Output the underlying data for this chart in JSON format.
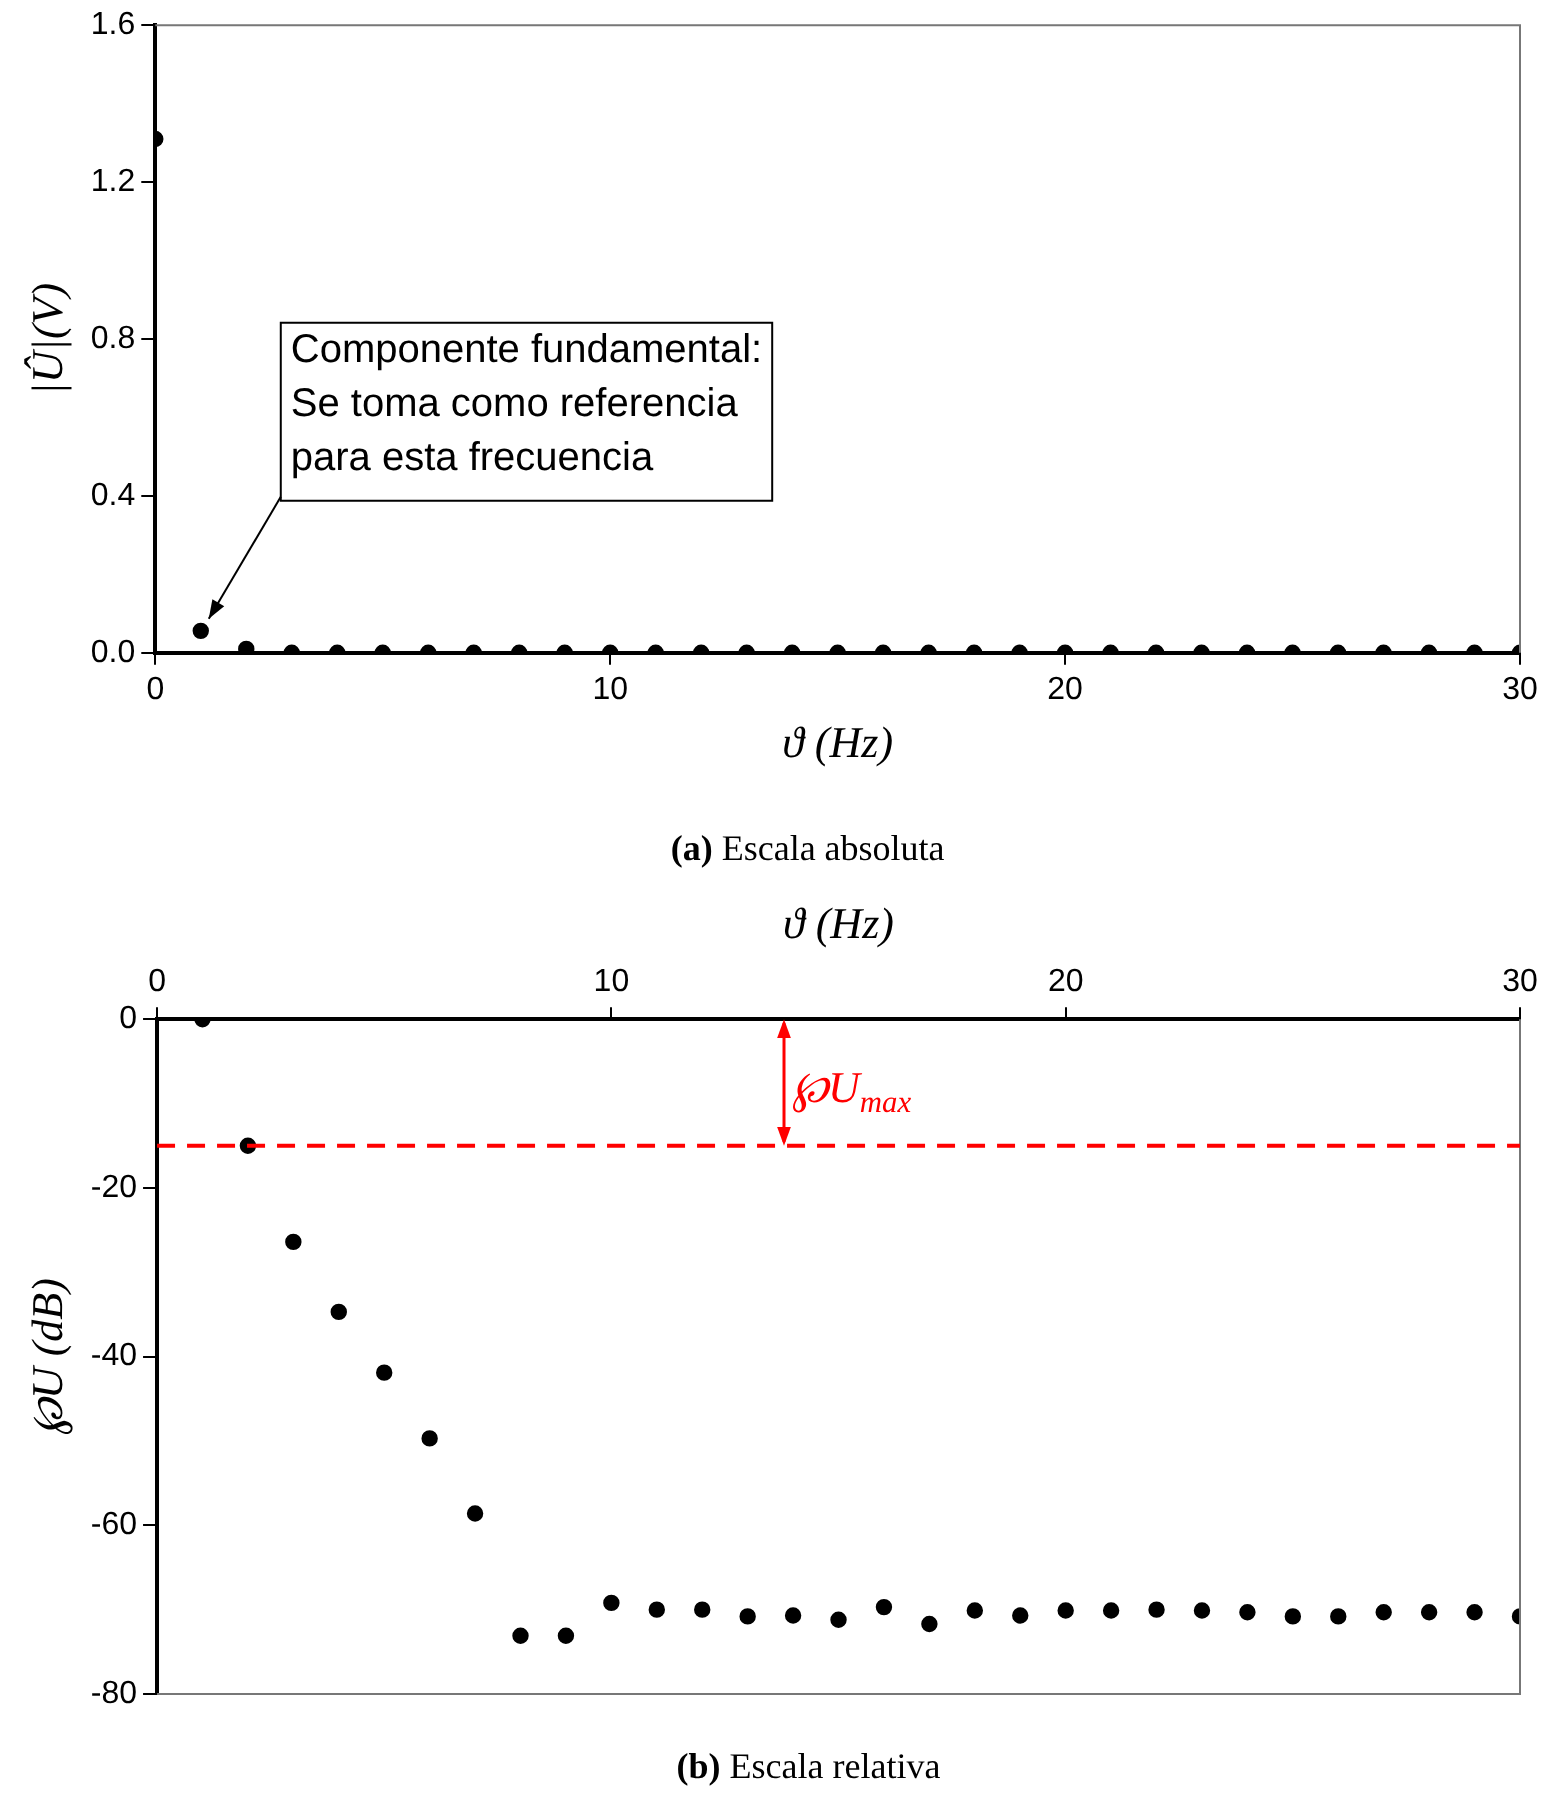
{
  "chart_data": [
    {
      "type": "scatter",
      "xlabel": "ϑ (Hz)",
      "ylabel": "|Û|(V)",
      "x": [
        0,
        1,
        2,
        3,
        4,
        5,
        6,
        7,
        8,
        9,
        10,
        11,
        12,
        13,
        14,
        15,
        16,
        17,
        18,
        19,
        20,
        21,
        22,
        23,
        24,
        25,
        26,
        27,
        28,
        29,
        30
      ],
      "series": [
        {
          "color": "#000000",
          "values": [
            1.31,
            0.056,
            0.01,
            0,
            0,
            0,
            0,
            0,
            0,
            0,
            0,
            0,
            0,
            0,
            0,
            0,
            0,
            0,
            0,
            0,
            0,
            0,
            0,
            0,
            0,
            0,
            0,
            0,
            0,
            0,
            0
          ]
        }
      ],
      "xlim": [
        0,
        30
      ],
      "xticks": [
        0,
        10,
        20,
        30
      ],
      "ylim": [
        0,
        1.6
      ],
      "yticks": [
        {
          "value": 0,
          "label": "0.0"
        },
        0.4,
        0.8,
        1.2,
        1.6
      ],
      "marker": "circle",
      "legend": false,
      "grid": false,
      "annotations": [
        {
          "text": "Componente fundamental:\nSe toma como referencia\npara esta frecuencia",
          "x": 1,
          "y": 0.056
        },
        "(a) Escala absoluta"
      ]
    },
    {
      "type": "scatter",
      "xlabel": "ϑ (Hz)",
      "ylabel": "℘U (dB)",
      "x": [
        1,
        2,
        3,
        4,
        5,
        6,
        7,
        8,
        9,
        10,
        11,
        12,
        13,
        14,
        15,
        16,
        17,
        18,
        19,
        20,
        21,
        22,
        23,
        24,
        25,
        26,
        27,
        28,
        29,
        30
      ],
      "series": [
        {
          "color": "#000000",
          "values": [
            0,
            -15,
            -26.4,
            -34.7,
            -41.9,
            -49.7,
            -58.6,
            -73.1,
            -73.1,
            -69.2,
            -70,
            -70,
            -70.8,
            -70.7,
            -71.2,
            -69.7,
            -71.7,
            -70.1,
            -70.7,
            -70.1,
            -70.1,
            -70,
            -70.1,
            -70.3,
            -70.8,
            -70.8,
            -70.3,
            -70.3,
            -70.3,
            -70.8
          ]
        }
      ],
      "xlim": [
        0,
        30
      ],
      "xticks": [
        0,
        10,
        20,
        30
      ],
      "ylim": [
        -80,
        0
      ],
      "yticks": [
        -80,
        -60,
        -40,
        -20,
        0
      ],
      "marker": "circle",
      "legend": false,
      "grid": false,
      "ref_lines": [
        {
          "axis": "y",
          "value": -15,
          "color": "#ff0000",
          "line_style": "dashed"
        }
      ],
      "annotations": [
        "℘U$_{max}$",
        "(b) Escala relativa"
      ]
    }
  ]
}
